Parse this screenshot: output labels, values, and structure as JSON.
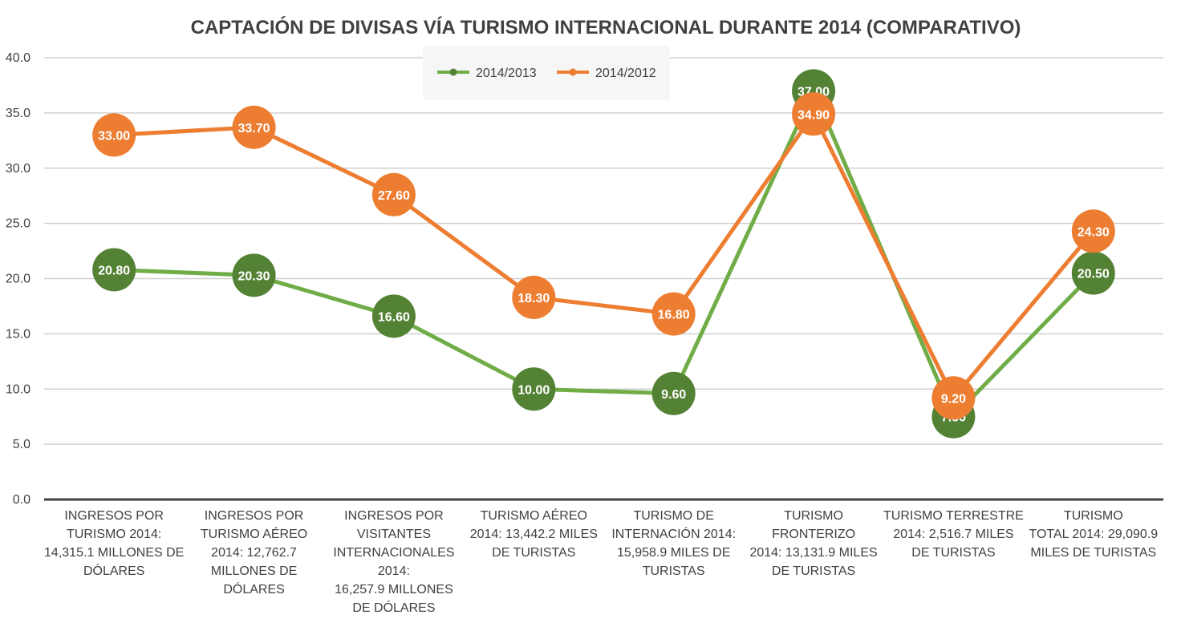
{
  "chart_data": {
    "type": "line",
    "title": "CAPTACIÓN DE DIVISAS VÍA TURISMO INTERNACIONAL DURANTE 2014 (COMPARATIVO)",
    "categories": [
      "INGRESOS POR\nTURISMO 2014:\n14,315.1 MILLONES DE\nDÓLARES",
      "INGRESOS POR\nTURISMO AÉREO\n2014: 12,762.7\nMILLONES DE\nDÓLARES",
      "INGRESOS POR\nVISITANTES\nINTERNACIONALES\n2014:\n16,257.9  MILLONES\nDE DÓLARES",
      "TURISMO AÉREO\n2014: 13,442.2 MILES\nDE TURISTAS",
      "TURISMO DE\nINTERNACIÓN 2014:\n15,958.9 MILES DE\nTURISTAS",
      "TURISMO FRONTERIZO\n2014: 13,131.9 MILES\nDE TURISTAS",
      "TURISMO TERRESTRE\n2014: 2,516.7 MILES\nDE TURISTAS",
      "TURISMO\nTOTAL  2014: 29,090.9\nMILES DE TURISTAS"
    ],
    "series": [
      {
        "name": "2014/2013",
        "line_color": "#70ad47",
        "marker_color": "#548235",
        "values": [
          20.8,
          20.3,
          16.6,
          10.0,
          9.6,
          37.0,
          7.5,
          20.5
        ],
        "labels": [
          "20.80",
          "20.30",
          "16.60",
          "10.00",
          "9.60",
          "37.00",
          "7.50",
          "20.50"
        ]
      },
      {
        "name": "2014/2012",
        "line_color": "#ed7d31",
        "marker_color": "#ed7d31",
        "values": [
          33.0,
          33.7,
          27.6,
          18.3,
          16.8,
          34.9,
          9.2,
          24.3
        ],
        "labels": [
          "33.00",
          "33.70",
          "27.60",
          "18.30",
          "16.80",
          "34.90",
          "9.20",
          "24.30"
        ]
      }
    ],
    "ylim": [
      0,
      40
    ],
    "yticks": [
      "0.0",
      "5.0",
      "10.0",
      "15.0",
      "20.0",
      "25.0",
      "30.0",
      "35.0",
      "40.0"
    ],
    "ytick_values": [
      0,
      5,
      10,
      15,
      20,
      25,
      30,
      35,
      40
    ],
    "xlabel": "",
    "ylabel": "",
    "grid": true,
    "legend": "top-center"
  }
}
